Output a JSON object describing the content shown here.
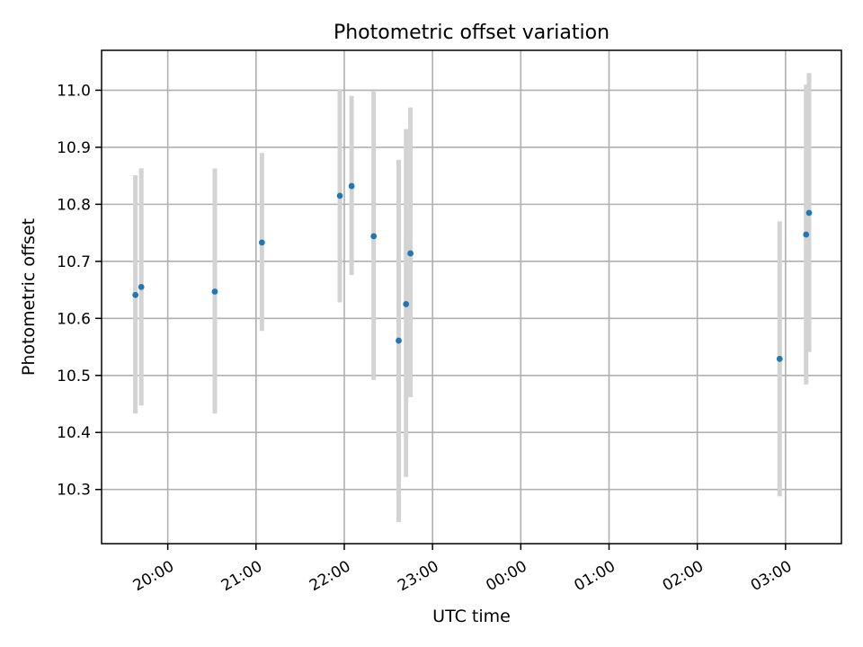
{
  "chart_data": {
    "type": "scatter",
    "title": "Photometric offset variation",
    "xlabel": "UTC time",
    "ylabel": "Photometric offset",
    "x_axis_type": "time",
    "xlim": [
      "19:15",
      "03:38"
    ],
    "ylim": [
      10.205,
      11.07
    ],
    "grid": true,
    "x_ticks": [
      "20:00",
      "21:00",
      "22:00",
      "23:00",
      "00:00",
      "01:00",
      "02:00",
      "03:00"
    ],
    "x_tick_rotation_deg": 30,
    "y_ticks": [
      10.3,
      10.4,
      10.5,
      10.6,
      10.7,
      10.8,
      10.9,
      11.0
    ],
    "y_tick_labels": [
      "10.3",
      "10.4",
      "10.5",
      "10.6",
      "10.7",
      "10.8",
      "10.9",
      "11.0"
    ],
    "marker_color": "#1f77b4",
    "errorbar_color": "#d3d3d3",
    "series": [
      {
        "points": [
          {
            "x": "19:38",
            "y": 10.641,
            "low": 10.433,
            "high": 10.851
          },
          {
            "x": "19:42",
            "y": 10.655,
            "low": 10.447,
            "high": 10.863
          },
          {
            "x": "20:32",
            "y": 10.647,
            "low": 10.433,
            "high": 10.863
          },
          {
            "x": "21:04",
            "y": 10.733,
            "low": 10.578,
            "high": 10.89
          },
          {
            "x": "21:57",
            "y": 10.815,
            "low": 10.628,
            "high": 11.002
          },
          {
            "x": "22:05",
            "y": 10.832,
            "low": 10.676,
            "high": 10.99
          },
          {
            "x": "22:20",
            "y": 10.744,
            "low": 10.492,
            "high": 10.998
          },
          {
            "x": "22:37",
            "y": 10.561,
            "low": 10.243,
            "high": 10.878
          },
          {
            "x": "22:42",
            "y": 10.625,
            "low": 10.322,
            "high": 10.932
          },
          {
            "x": "22:45",
            "y": 10.714,
            "low": 10.462,
            "high": 10.97
          },
          {
            "x": "02:56",
            "y": 10.529,
            "low": 10.288,
            "high": 10.77
          },
          {
            "x": "03:14",
            "y": 10.747,
            "low": 10.484,
            "high": 11.01
          },
          {
            "x": "03:16",
            "y": 10.785,
            "low": 10.541,
            "high": 11.03
          }
        ]
      }
    ]
  }
}
